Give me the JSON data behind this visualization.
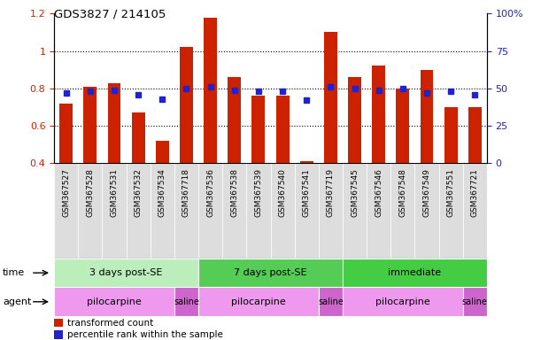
{
  "title": "GDS3827 / 214105",
  "samples": [
    "GSM367527",
    "GSM367528",
    "GSM367531",
    "GSM367532",
    "GSM367534",
    "GSM367718",
    "GSM367536",
    "GSM367538",
    "GSM367539",
    "GSM367540",
    "GSM367541",
    "GSM367719",
    "GSM367545",
    "GSM367546",
    "GSM367548",
    "GSM367549",
    "GSM367551",
    "GSM367721"
  ],
  "red_values": [
    0.72,
    0.81,
    0.83,
    0.67,
    0.52,
    1.02,
    1.18,
    0.86,
    0.76,
    0.76,
    0.41,
    1.1,
    0.86,
    0.92,
    0.8,
    0.9,
    0.7,
    0.7
  ],
  "blue_values_pct": [
    47,
    48,
    49,
    46,
    43,
    50,
    51,
    49,
    48,
    48,
    42,
    51,
    50,
    49,
    50,
    47,
    48,
    46
  ],
  "ylim_left": [
    0.4,
    1.2
  ],
  "ylim_right": [
    0,
    100
  ],
  "yticks_left": [
    0.4,
    0.6,
    0.8,
    1.0,
    1.2
  ],
  "ytick_left_labels": [
    "0.4",
    "0.6",
    "0.8",
    "1",
    "1.2"
  ],
  "yticks_right": [
    0,
    25,
    50,
    75,
    100
  ],
  "ytick_right_labels": [
    "0",
    "25",
    "50",
    "75",
    "100%"
  ],
  "bar_color": "#CC2200",
  "marker_color": "#2222CC",
  "gridline_color": "#000000",
  "spine_color": "#000000",
  "tick_color_left": "#CC2200",
  "tick_color_right": "#2222BB",
  "sample_bg": "#DDDDDD",
  "time_groups": [
    {
      "label": "3 days post-SE",
      "start": 0,
      "end": 6,
      "color": "#BBEEBB"
    },
    {
      "label": "7 days post-SE",
      "start": 6,
      "end": 12,
      "color": "#55CC55"
    },
    {
      "label": "immediate",
      "start": 12,
      "end": 18,
      "color": "#44CC44"
    }
  ],
  "agent_groups": [
    {
      "label": "pilocarpine",
      "start": 0,
      "end": 5,
      "color": "#EE99EE"
    },
    {
      "label": "saline",
      "start": 5,
      "end": 6,
      "color": "#CC66CC"
    },
    {
      "label": "pilocarpine",
      "start": 6,
      "end": 11,
      "color": "#EE99EE"
    },
    {
      "label": "saline",
      "start": 11,
      "end": 12,
      "color": "#CC66CC"
    },
    {
      "label": "pilocarpine",
      "start": 12,
      "end": 17,
      "color": "#EE99EE"
    },
    {
      "label": "saline",
      "start": 17,
      "end": 18,
      "color": "#CC66CC"
    }
  ],
  "legend_red": "transformed count",
  "legend_blue": "percentile rank within the sample",
  "time_label": "time",
  "agent_label": "agent",
  "fig_width": 6.11,
  "fig_height": 3.84,
  "dpi": 100
}
